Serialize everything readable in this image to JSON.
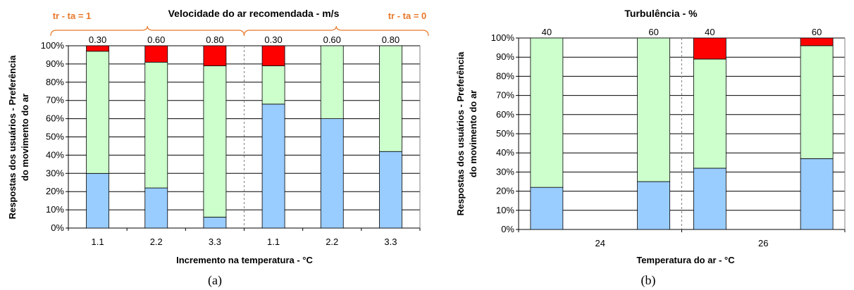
{
  "colors": {
    "blue": "#99CCFF",
    "green": "#CCFFCC",
    "red": "#FF0000",
    "orange": "#E8782A",
    "grid": "#000000",
    "separator": "#808080"
  },
  "chart_data": [
    {
      "type": "bar",
      "stacked": true,
      "caption": "(a)",
      "title": "Velocidade do ar recomendada - m/s",
      "xlabel": "Incremento na temperatura - °C",
      "ylabel_lines": [
        "Respostas dos usuários - Preferência",
        "do movimento do ar"
      ],
      "ylim": [
        0,
        100
      ],
      "y_ticks": [
        "0%",
        "10%",
        "20%",
        "30%",
        "40%",
        "50%",
        "60%",
        "70%",
        "80%",
        "90%",
        "100%"
      ],
      "grid": true,
      "categories": [
        "1.1",
        "2.2",
        "3.3",
        "1.1",
        "2.2",
        "3.3"
      ],
      "top_labels": [
        "0.30",
        "0.60",
        "0.80",
        "0.30",
        "0.60",
        "0.80"
      ],
      "group_labels": [
        {
          "text": "tr - ta = 1",
          "from": 0,
          "to": 2
        },
        {
          "text": "tr - ta = 0",
          "from": 3,
          "to": 5
        }
      ],
      "separator_after_index": 2,
      "series": [
        {
          "color": "#99CCFF",
          "values": [
            30,
            22,
            6,
            68,
            60,
            42
          ]
        },
        {
          "color": "#CCFFCC",
          "values": [
            67,
            69,
            83,
            21,
            40,
            58
          ]
        },
        {
          "color": "#FF0000",
          "values": [
            3,
            9,
            11,
            11,
            0,
            0
          ]
        }
      ]
    },
    {
      "type": "bar",
      "stacked": true,
      "caption": "(b)",
      "title": "Turbulência - %",
      "xlabel": "Temperatura do ar - °C",
      "ylabel_lines": [
        "Respostas dos usuários - Preferência",
        "do movimento do ar"
      ],
      "ylim": [
        0,
        100
      ],
      "y_ticks": [
        "0%",
        "10%",
        "20%",
        "30%",
        "40%",
        "50%",
        "60%",
        "70%",
        "80%",
        "90%",
        "100%"
      ],
      "grid": true,
      "top_labels": [
        "40",
        "60",
        "40",
        "60"
      ],
      "group_categories": [
        "24",
        "26"
      ],
      "separator_after_index": 1,
      "series": [
        {
          "color": "#99CCFF",
          "values": [
            22,
            25,
            32,
            37
          ]
        },
        {
          "color": "#CCFFCC",
          "values": [
            78,
            75,
            57,
            59
          ]
        },
        {
          "color": "#FF0000",
          "values": [
            0,
            0,
            11,
            4
          ]
        }
      ]
    }
  ]
}
